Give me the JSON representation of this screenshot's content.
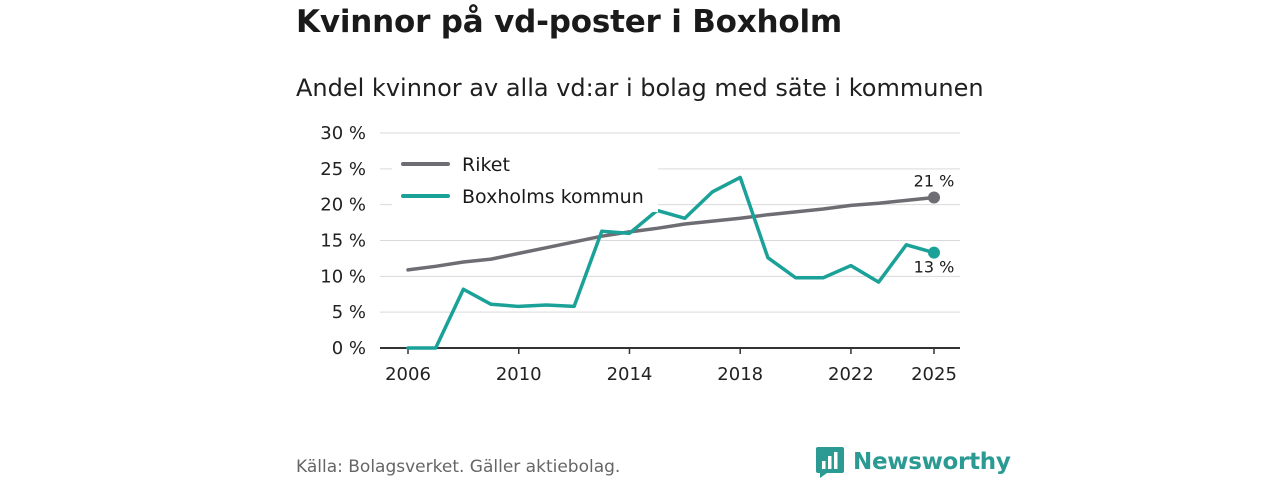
{
  "title": "Kvinnor på vd-poster i Boxholm",
  "subtitle": "Andel kvinnor av alla vd:ar i bolag med säte i kommunen",
  "source": "Källa: Bolagsverket. Gäller aktiebolag.",
  "brand": "Newsworthy",
  "chart_data": {
    "type": "line",
    "x": [
      2006,
      2007,
      2008,
      2009,
      2010,
      2011,
      2012,
      2013,
      2014,
      2015,
      2016,
      2017,
      2018,
      2019,
      2020,
      2021,
      2022,
      2023,
      2024,
      2025
    ],
    "series": [
      {
        "name": "Riket",
        "color": "#6e6d73",
        "values": [
          10.9,
          11.4,
          12.0,
          12.4,
          13.2,
          14.0,
          14.8,
          15.6,
          16.2,
          16.7,
          17.3,
          17.7,
          18.1,
          18.6,
          19.0,
          19.4,
          19.9,
          20.2,
          20.6,
          21.0
        ],
        "end_label": "21 %"
      },
      {
        "name": "Boxholms kommun",
        "color": "#1aa198",
        "values": [
          0,
          0,
          8.2,
          6.1,
          5.8,
          6.0,
          5.8,
          16.3,
          16.0,
          19.2,
          18.1,
          21.8,
          23.8,
          12.6,
          9.8,
          9.8,
          11.5,
          9.2,
          14.4,
          13.3
        ],
        "end_label": "13 %"
      }
    ],
    "y_ticks": [
      0,
      5,
      10,
      15,
      20,
      25,
      30
    ],
    "y_tick_labels": [
      "0 %",
      "5 %",
      "10 %",
      "15 %",
      "20 %",
      "25 %",
      "30 %"
    ],
    "x_ticks": [
      2006,
      2010,
      2014,
      2018,
      2022,
      2025
    ],
    "x_tick_labels": [
      "2006",
      "2010",
      "2014",
      "2018",
      "2022",
      "2025"
    ],
    "ylim": [
      0,
      30
    ],
    "xlim": [
      2006,
      2025
    ],
    "xlabel": "",
    "ylabel": "",
    "grid": true,
    "legend": "top-left"
  }
}
